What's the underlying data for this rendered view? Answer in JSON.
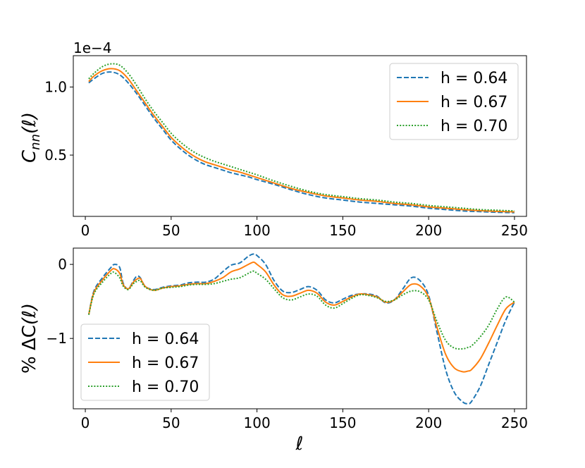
{
  "chart_data": [
    {
      "type": "line",
      "title": "",
      "xlabel": "",
      "ylabel": "C_nn(ℓ)",
      "ylabel_main": "C",
      "ylabel_sub": "nn",
      "ylabel_arg": "(ℓ)",
      "offset_text": "1e−4",
      "xlim": [
        -7,
        257
      ],
      "ylim": [
        0.05,
        1.23
      ],
      "x_ticks": [
        0,
        50,
        100,
        150,
        200,
        250
      ],
      "x_tick_labels": [
        "0",
        "50",
        "100",
        "150",
        "200",
        "250"
      ],
      "y_ticks": [
        0.5,
        1.0
      ],
      "y_tick_labels": [
        "0.5",
        "1.0"
      ],
      "legend_position": "upper-right",
      "x": [
        2,
        5,
        10,
        15,
        20,
        25,
        30,
        35,
        40,
        45,
        50,
        55,
        60,
        65,
        70,
        75,
        80,
        85,
        90,
        95,
        100,
        110,
        120,
        130,
        140,
        150,
        160,
        170,
        180,
        190,
        200,
        210,
        220,
        230,
        240,
        250
      ],
      "series": [
        {
          "name": "h = 0.64",
          "color": "#1f77b4",
          "dash": "dashed",
          "values": [
            1.03,
            1.06,
            1.1,
            1.11,
            1.09,
            1.03,
            0.95,
            0.86,
            0.77,
            0.69,
            0.61,
            0.55,
            0.5,
            0.46,
            0.43,
            0.41,
            0.39,
            0.37,
            0.355,
            0.34,
            0.32,
            0.285,
            0.245,
            0.21,
            0.185,
            0.17,
            0.155,
            0.145,
            0.135,
            0.125,
            0.11,
            0.1,
            0.09,
            0.085,
            0.08,
            0.077
          ]
        },
        {
          "name": "h = 0.67",
          "color": "#ff7f0e",
          "dash": "solid",
          "values": [
            1.04,
            1.08,
            1.12,
            1.135,
            1.12,
            1.06,
            0.97,
            0.88,
            0.79,
            0.71,
            0.63,
            0.57,
            0.52,
            0.48,
            0.45,
            0.43,
            0.41,
            0.39,
            0.375,
            0.355,
            0.335,
            0.295,
            0.255,
            0.225,
            0.2,
            0.185,
            0.17,
            0.16,
            0.145,
            0.135,
            0.12,
            0.11,
            0.1,
            0.092,
            0.087,
            0.083
          ]
        },
        {
          "name": "h = 0.70",
          "color": "#2ca02c",
          "dash": "dotted",
          "values": [
            1.06,
            1.1,
            1.15,
            1.17,
            1.16,
            1.1,
            1.01,
            0.91,
            0.82,
            0.74,
            0.66,
            0.6,
            0.55,
            0.51,
            0.48,
            0.455,
            0.435,
            0.415,
            0.395,
            0.375,
            0.355,
            0.31,
            0.27,
            0.235,
            0.21,
            0.195,
            0.18,
            0.17,
            0.155,
            0.145,
            0.13,
            0.12,
            0.11,
            0.1,
            0.095,
            0.09
          ]
        }
      ]
    },
    {
      "type": "line",
      "title": "",
      "xlabel": "ℓ",
      "ylabel": "% ΔC(ℓ)",
      "ylabel_main": "% ΔC",
      "ylabel_sub": "",
      "ylabel_arg": "(ℓ)",
      "offset_text": "",
      "xlim": [
        -7,
        257
      ],
      "ylim": [
        -1.95,
        0.22
      ],
      "x_ticks": [
        0,
        50,
        100,
        150,
        200,
        250
      ],
      "x_tick_labels": [
        "0",
        "50",
        "100",
        "150",
        "200",
        "250"
      ],
      "y_ticks": [
        -1,
        0
      ],
      "y_tick_labels": [
        "−1",
        "0"
      ],
      "legend_position": "lower-left",
      "x": [
        2,
        5,
        10,
        15,
        17,
        20,
        22,
        25,
        28,
        30,
        32,
        35,
        40,
        45,
        50,
        55,
        60,
        65,
        70,
        75,
        80,
        85,
        90,
        95,
        98,
        100,
        105,
        110,
        115,
        120,
        125,
        130,
        135,
        140,
        145,
        150,
        155,
        160,
        165,
        170,
        175,
        180,
        185,
        190,
        195,
        200,
        205,
        210,
        215,
        220,
        223,
        225,
        230,
        235,
        240,
        245,
        250
      ],
      "series": [
        {
          "name": "h = 0.64",
          "color": "#1f77b4",
          "dash": "dashed",
          "values": [
            -0.68,
            -0.36,
            -0.18,
            -0.04,
            0.0,
            -0.04,
            -0.25,
            -0.33,
            -0.22,
            -0.16,
            -0.18,
            -0.3,
            -0.34,
            -0.31,
            -0.29,
            -0.28,
            -0.25,
            -0.24,
            -0.24,
            -0.2,
            -0.1,
            -0.01,
            0.02,
            0.11,
            0.14,
            0.12,
            0.0,
            -0.22,
            -0.36,
            -0.38,
            -0.34,
            -0.3,
            -0.35,
            -0.48,
            -0.52,
            -0.47,
            -0.42,
            -0.4,
            -0.4,
            -0.43,
            -0.52,
            -0.48,
            -0.33,
            -0.18,
            -0.22,
            -0.42,
            -0.93,
            -1.43,
            -1.73,
            -1.86,
            -1.88,
            -1.85,
            -1.65,
            -1.35,
            -1.05,
            -0.75,
            -0.51
          ]
        },
        {
          "name": "h = 0.67",
          "color": "#ff7f0e",
          "dash": "solid",
          "values": [
            -0.68,
            -0.38,
            -0.21,
            -0.08,
            -0.06,
            -0.12,
            -0.27,
            -0.33,
            -0.24,
            -0.2,
            -0.19,
            -0.3,
            -0.35,
            -0.32,
            -0.3,
            -0.29,
            -0.27,
            -0.26,
            -0.26,
            -0.23,
            -0.18,
            -0.1,
            -0.06,
            0.0,
            0.03,
            0.0,
            -0.1,
            -0.28,
            -0.41,
            -0.43,
            -0.39,
            -0.35,
            -0.39,
            -0.51,
            -0.55,
            -0.5,
            -0.44,
            -0.4,
            -0.41,
            -0.44,
            -0.51,
            -0.48,
            -0.37,
            -0.27,
            -0.29,
            -0.45,
            -0.86,
            -1.22,
            -1.4,
            -1.45,
            -1.44,
            -1.42,
            -1.28,
            -1.06,
            -0.82,
            -0.6,
            -0.51
          ]
        },
        {
          "name": "h = 0.70",
          "color": "#2ca02c",
          "dash": "dotted",
          "values": [
            -0.68,
            -0.4,
            -0.24,
            -0.12,
            -0.11,
            -0.18,
            -0.29,
            -0.34,
            -0.26,
            -0.23,
            -0.22,
            -0.31,
            -0.35,
            -0.32,
            -0.31,
            -0.3,
            -0.28,
            -0.27,
            -0.27,
            -0.26,
            -0.23,
            -0.2,
            -0.18,
            -0.12,
            -0.09,
            -0.12,
            -0.2,
            -0.33,
            -0.45,
            -0.48,
            -0.44,
            -0.4,
            -0.43,
            -0.55,
            -0.59,
            -0.53,
            -0.46,
            -0.41,
            -0.42,
            -0.45,
            -0.5,
            -0.48,
            -0.41,
            -0.36,
            -0.37,
            -0.48,
            -0.78,
            -1.03,
            -1.13,
            -1.14,
            -1.12,
            -1.1,
            -0.98,
            -0.82,
            -0.6,
            -0.44,
            -0.51
          ]
        }
      ]
    }
  ]
}
